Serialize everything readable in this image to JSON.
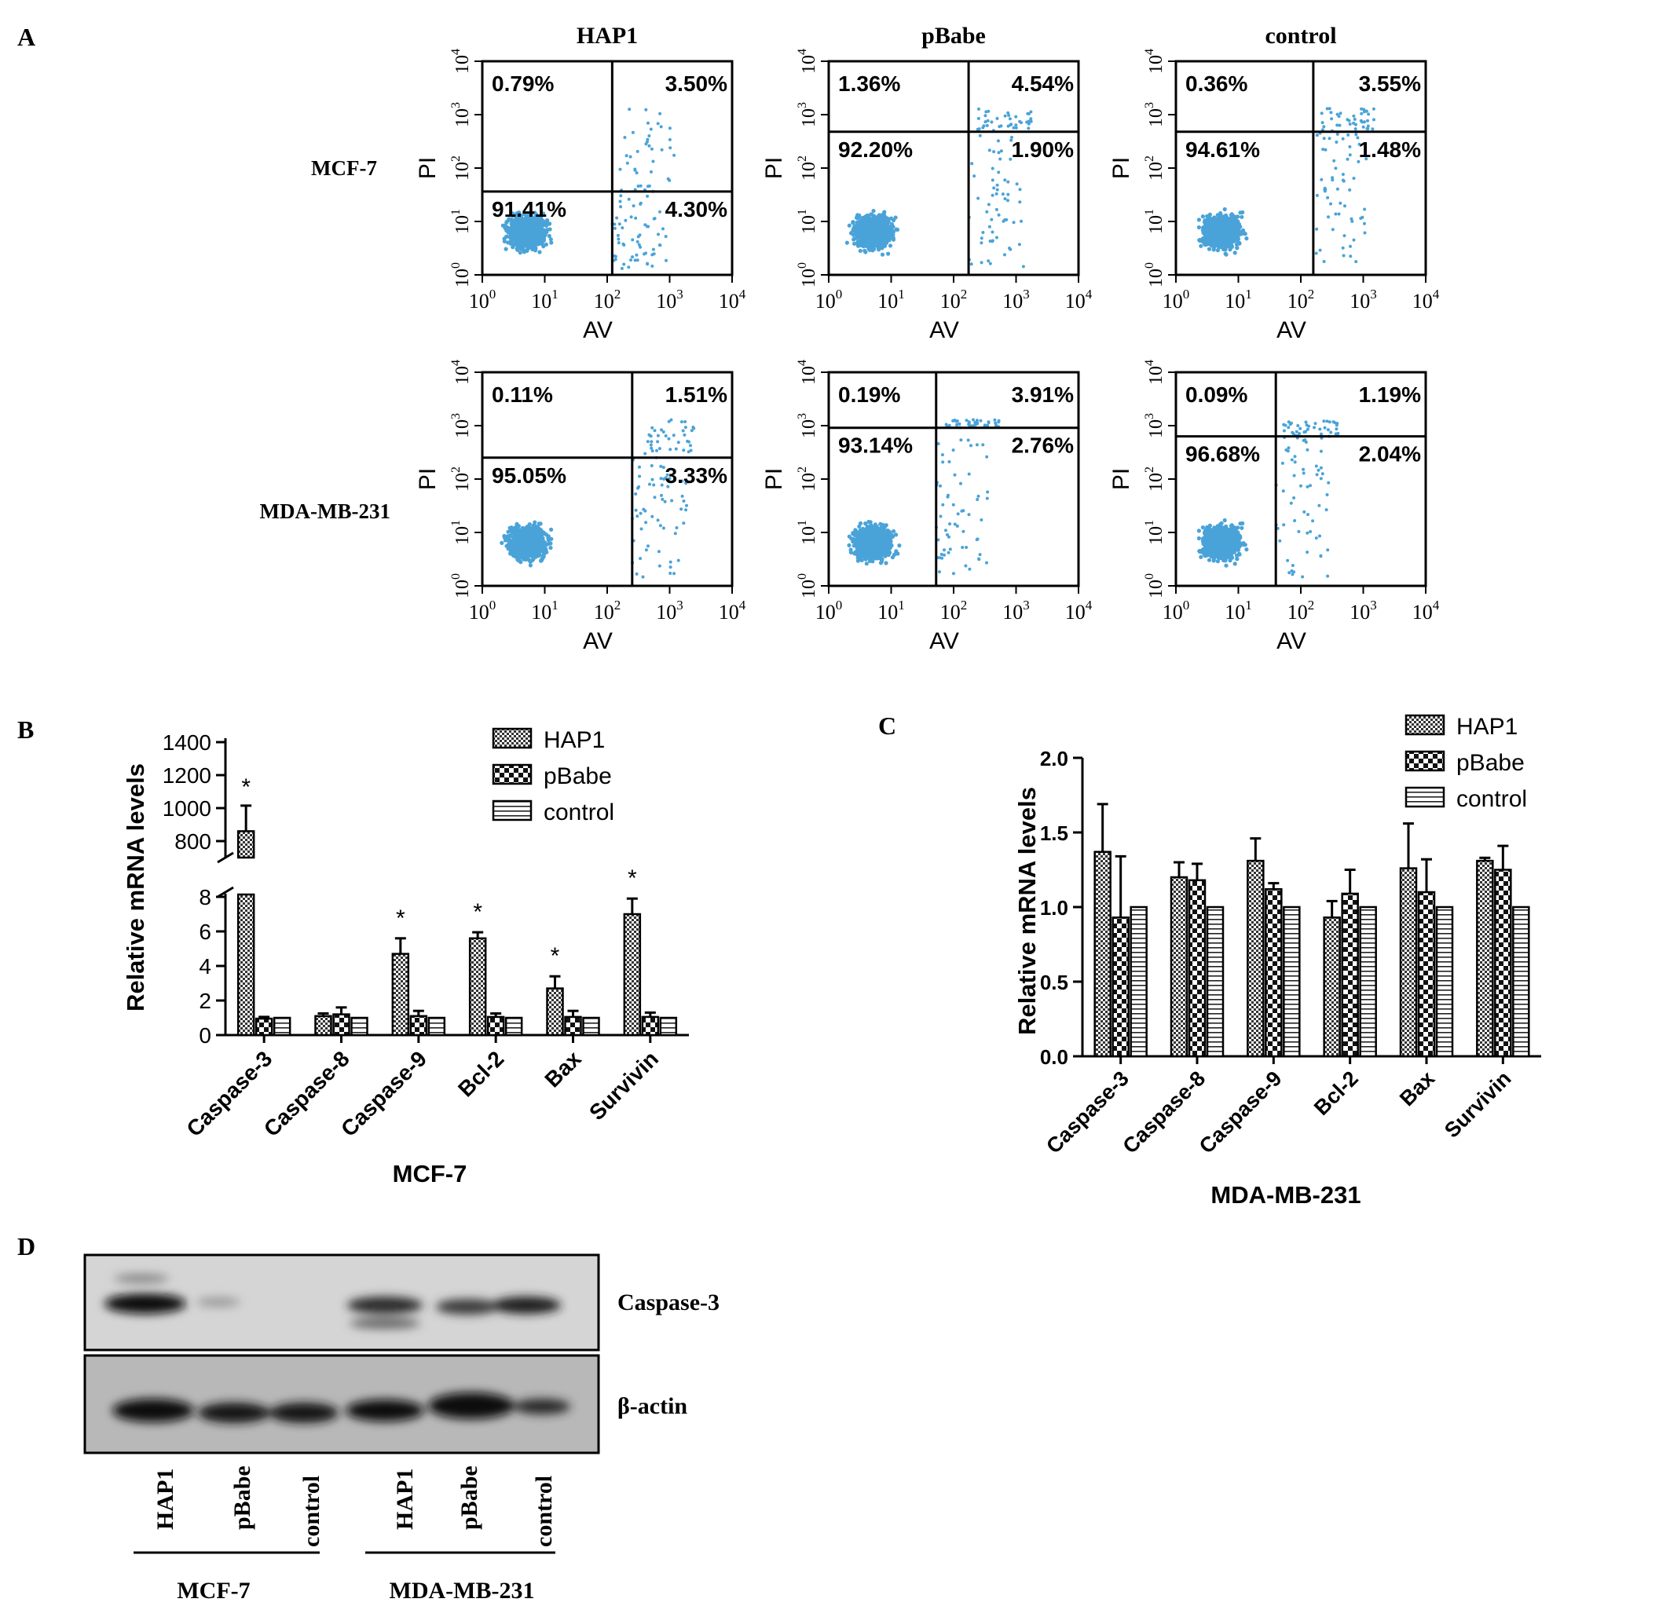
{
  "panel_labels": {
    "a": "A",
    "b": "B",
    "c": "C",
    "d": "D"
  },
  "flow": {
    "columns": [
      "HAP1",
      "pBabe",
      "control"
    ],
    "rows": [
      "MCF-7",
      "MDA-MB-231"
    ],
    "x_axis_label": "AV",
    "y_axis_label": "PI",
    "tick_labels": [
      "10",
      "10",
      "10",
      "10",
      "10"
    ],
    "tick_exponents": [
      "0",
      "1",
      "2",
      "3",
      "4"
    ],
    "dot_color": "#4aa3d8",
    "plots": [
      {
        "row": "MCF-7",
        "column": "HAP1",
        "quadrants": {
          "upper_left": "0.79%",
          "upper_right": "3.50%",
          "lower_left": "91.41%",
          "lower_right": "4.30%"
        }
      },
      {
        "row": "MCF-7",
        "column": "pBabe",
        "quadrants": {
          "upper_left": "1.36%",
          "upper_right": "4.54%",
          "lower_left": "92.20%",
          "lower_right": "1.90%"
        }
      },
      {
        "row": "MCF-7",
        "column": "control",
        "quadrants": {
          "upper_left": "0.36%",
          "upper_right": "3.55%",
          "lower_left": "94.61%",
          "lower_right": "1.48%"
        }
      },
      {
        "row": "MDA-MB-231",
        "column": "HAP1",
        "quadrants": {
          "upper_left": "0.11%",
          "upper_right": "1.51%",
          "lower_left": "95.05%",
          "lower_right": "3.33%"
        }
      },
      {
        "row": "MDA-MB-231",
        "column": "pBabe",
        "quadrants": {
          "upper_left": "0.19%",
          "upper_right": "3.91%",
          "lower_left": "93.14%",
          "lower_right": "2.76%"
        }
      },
      {
        "row": "MDA-MB-231",
        "column": "control",
        "quadrants": {
          "upper_left": "0.09%",
          "upper_right": "1.19%",
          "lower_left": "96.68%",
          "lower_right": "2.04%"
        }
      }
    ]
  },
  "chart_data": [
    {
      "type": "bar",
      "panel": "B",
      "xlabel": "MCF-7",
      "ylabel": "Relative mRNA levels",
      "categories": [
        "Caspase-3",
        "Caspase-8",
        "Caspase-9",
        "Bcl-2",
        "Bax",
        "Survivin"
      ],
      "series": [
        {
          "name": "HAP1",
          "values": [
            860,
            1.1,
            4.7,
            5.6,
            2.7,
            7.0
          ],
          "errors": [
            155,
            0.15,
            0.9,
            0.35,
            0.7,
            0.9
          ]
        },
        {
          "name": "pBabe",
          "values": [
            0.95,
            1.2,
            1.1,
            1.05,
            1.05,
            1.05
          ],
          "errors": [
            0.1,
            0.4,
            0.3,
            0.2,
            0.35,
            0.25
          ]
        },
        {
          "name": "control",
          "values": [
            1.0,
            1.0,
            1.0,
            1.0,
            1.0,
            1.0
          ],
          "errors": [
            0,
            0,
            0,
            0,
            0,
            0
          ]
        }
      ],
      "significance": [
        "*",
        "",
        "*",
        "*",
        "*",
        "*"
      ],
      "y_axis_broken": true,
      "ylim_lower": [
        0,
        9
      ],
      "ylim_upper": [
        700,
        1400
      ],
      "yticks_lower": [
        "0",
        "2",
        "4",
        "6",
        "8"
      ],
      "yticks_upper": [
        "800",
        "1000",
        "1200",
        "1400"
      ],
      "legend": "top-right"
    },
    {
      "type": "bar",
      "panel": "C",
      "xlabel": "MDA-MB-231",
      "ylabel": "Relative mRNA levels",
      "categories": [
        "Caspase-3",
        "Caspase-8",
        "Caspase-9",
        "Bcl-2",
        "Bax",
        "Survivin"
      ],
      "series": [
        {
          "name": "HAP1",
          "values": [
            1.37,
            1.2,
            1.31,
            0.93,
            1.26,
            1.31
          ],
          "errors": [
            0.32,
            0.1,
            0.15,
            0.11,
            0.3,
            0.02
          ]
        },
        {
          "name": "pBabe",
          "values": [
            0.93,
            1.18,
            1.12,
            1.09,
            1.1,
            1.25
          ],
          "errors": [
            0.41,
            0.11,
            0.04,
            0.16,
            0.22,
            0.16
          ]
        },
        {
          "name": "control",
          "values": [
            1.0,
            1.0,
            1.0,
            1.0,
            1.0,
            1.0
          ],
          "errors": [
            0,
            0,
            0,
            0,
            0,
            0
          ]
        }
      ],
      "ylim": [
        0,
        2.0
      ],
      "yticks": [
        "0.0",
        "0.5",
        "1.0",
        "1.5",
        "2.0"
      ],
      "legend": "top-right"
    }
  ],
  "western": {
    "bands": [
      "Caspase-3",
      "β-actin"
    ],
    "lanes": [
      "HAP1",
      "pBabe",
      "control",
      "HAP1",
      "pBabe",
      "control"
    ],
    "groups": [
      "MCF-7",
      "MDA-MB-231"
    ]
  }
}
